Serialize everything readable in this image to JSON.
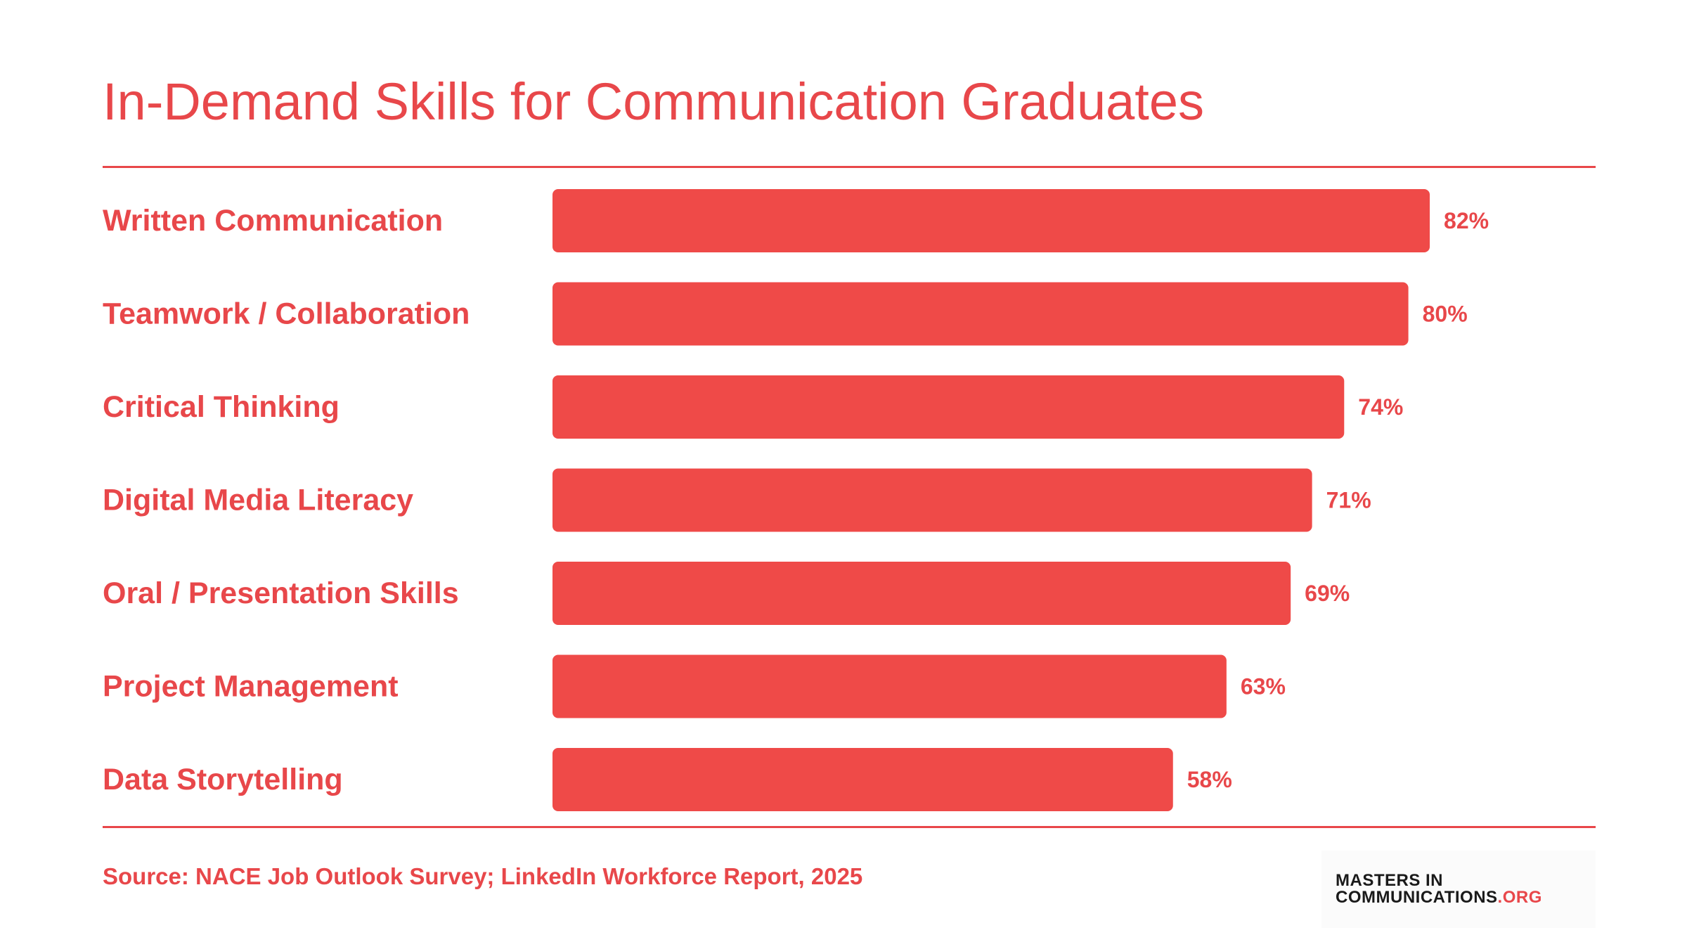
{
  "title": "In-Demand Skills for Communication Graduates",
  "source": "Source: NACE Job Outlook Survey; LinkedIn Workforce Report, 2025",
  "logo": {
    "line1": "MASTERS IN",
    "line2": "COMMUNICATIONS",
    "suffix": ".ORG"
  },
  "colors": {
    "accent": "#e8474a",
    "bar": "#ef4a48",
    "logo_text": "#1a1a1a"
  },
  "chart_data": {
    "type": "bar",
    "orientation": "horizontal",
    "categories": [
      "Written Communication",
      "Teamwork / Collaboration",
      "Critical Thinking",
      "Digital Media Literacy",
      "Oral / Presentation Skills",
      "Project Management",
      "Data Storytelling"
    ],
    "values": [
      82,
      80,
      74,
      71,
      69,
      63,
      58
    ],
    "value_labels": [
      "82%",
      "80%",
      "74%",
      "71%",
      "69%",
      "63%",
      "58%"
    ],
    "unit": "%",
    "xlim": [
      0,
      100
    ],
    "grid": false,
    "legend": "none"
  }
}
